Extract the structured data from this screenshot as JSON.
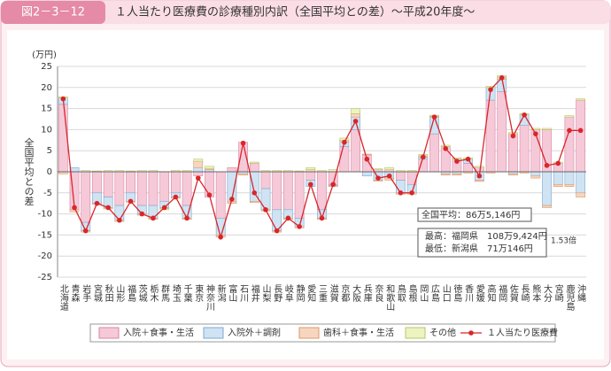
{
  "chart_data": {
    "type": "bar",
    "figure_label": "図2－3－12",
    "title": "１人当たり医療費の診療種別内訳（全国平均との差）～平成20年度～",
    "y_label": "全国平均との差",
    "y_unit": "(万円)",
    "categories": [
      "北海道",
      "青森",
      "岩手",
      "宮城",
      "秋田",
      "山形",
      "福島",
      "茨城",
      "栃木",
      "群馬",
      "埼玉",
      "千葉",
      "東京",
      "神奈川",
      "新潟",
      "富山",
      "石川",
      "福井",
      "山梨",
      "長野",
      "岐阜",
      "静岡",
      "愛知",
      "三重",
      "滋賀",
      "京都",
      "大阪",
      "兵庫",
      "奈良",
      "和歌山",
      "鳥取",
      "島根",
      "岡山",
      "広島",
      "山口",
      "徳島",
      "香川",
      "愛媛",
      "高知",
      "福岡",
      "佐賀",
      "長崎",
      "熊本",
      "大分",
      "宮崎",
      "鹿児島",
      "沖縄"
    ],
    "series": [
      {
        "name": "入院＋食事・生活",
        "color": "#f5c9d8",
        "values": [
          16,
          -9,
          -12,
          -5,
          -6,
          -8,
          -5,
          -8,
          -8,
          -7,
          -5,
          -8,
          -1,
          -6,
          -11,
          1,
          7,
          2,
          -4,
          -9,
          -9,
          -11,
          -2,
          -9,
          -3,
          6,
          10,
          4,
          0.5,
          0.5,
          -2,
          -3,
          3,
          9,
          6,
          3,
          2,
          1,
          17,
          19,
          9,
          11,
          10,
          10,
          2,
          13,
          17
        ]
      },
      {
        "name": "入院外＋調剤",
        "color": "#cfe3f3",
        "values": [
          1.5,
          1,
          -2,
          -2.5,
          -2.5,
          -3.5,
          -2,
          -2,
          -3,
          -1.5,
          -1,
          -3,
          1,
          0.5,
          -4,
          -7,
          -0.5,
          -7,
          -5,
          -5,
          -2,
          -2,
          -1.5,
          -2,
          -0.3,
          1,
          3,
          -1,
          -2,
          -1.5,
          -3,
          -2,
          0.5,
          4,
          -0.5,
          -0.5,
          1,
          -2,
          3,
          3,
          -0.5,
          2.5,
          -1,
          -8,
          -3,
          -3,
          -5
        ]
      },
      {
        "name": "歯科＋食事・生活",
        "color": "#f7d6c0",
        "values": [
          -0.5,
          -0.5,
          -0.3,
          -0.2,
          -0.3,
          -0.3,
          -0.2,
          -0.3,
          -0.3,
          -0.2,
          -0.3,
          -0.3,
          1.5,
          0.3,
          -0.5,
          -0.5,
          -0.3,
          -0.3,
          -0.3,
          -0.3,
          -0.3,
          -0.3,
          0.5,
          -0.3,
          -0.2,
          0.5,
          0.8,
          0.2,
          -0.2,
          -0.5,
          -0.3,
          -0.3,
          0.3,
          0.2,
          -0.3,
          -0.3,
          -0.3,
          -0.3,
          -0.3,
          0.5,
          -0.3,
          -0.3,
          -0.5,
          -0.5,
          -0.5,
          -0.5,
          -1
        ]
      },
      {
        "name": "その他",
        "color": "#eef3c2",
        "values": [
          0.3,
          0,
          0.3,
          0.2,
          0.3,
          0.3,
          0.2,
          0.3,
          0.3,
          -0.3,
          0.3,
          0.3,
          0.5,
          0.5,
          0,
          0,
          0,
          0.3,
          0.3,
          0.3,
          0.3,
          0.2,
          0.5,
          0.3,
          0.5,
          0.5,
          1.2,
          0,
          0.2,
          0.5,
          0.3,
          0.3,
          0.3,
          0.2,
          0.3,
          0.3,
          0.3,
          0.3,
          0.3,
          0.3,
          0.3,
          0.3,
          0.3,
          0.3,
          0.3,
          0.3,
          0.3
        ]
      },
      {
        "name": "１人当たり医療費",
        "color": "#d9262b",
        "type": "line",
        "values": [
          17.3,
          -8.5,
          -14,
          -7.5,
          -8.5,
          -11.5,
          -7,
          -10,
          -11,
          -8.5,
          -6,
          -11,
          -1.5,
          -5.5,
          -15.5,
          -6.5,
          6.8,
          -5,
          -9,
          -14,
          -11,
          -13,
          -3,
          -11,
          -3,
          7,
          12,
          3,
          -1.5,
          -1,
          -5,
          -5,
          3.5,
          13,
          5.5,
          2.5,
          3,
          -1,
          19.5,
          22.3,
          8.5,
          13.5,
          9,
          1.5,
          2,
          9.8,
          9.8
        ]
      }
    ],
    "ylim": [
      -25,
      25
    ],
    "yticks": [
      -25,
      -20,
      -15,
      -10,
      -5,
      0,
      5,
      10,
      15,
      20,
      25
    ],
    "grid": true,
    "annotations": [
      "全国平均：86万5,146円",
      "最高：福岡県　108万9,424円",
      "最低：新潟県　71万146円",
      "1.53倍"
    ]
  }
}
